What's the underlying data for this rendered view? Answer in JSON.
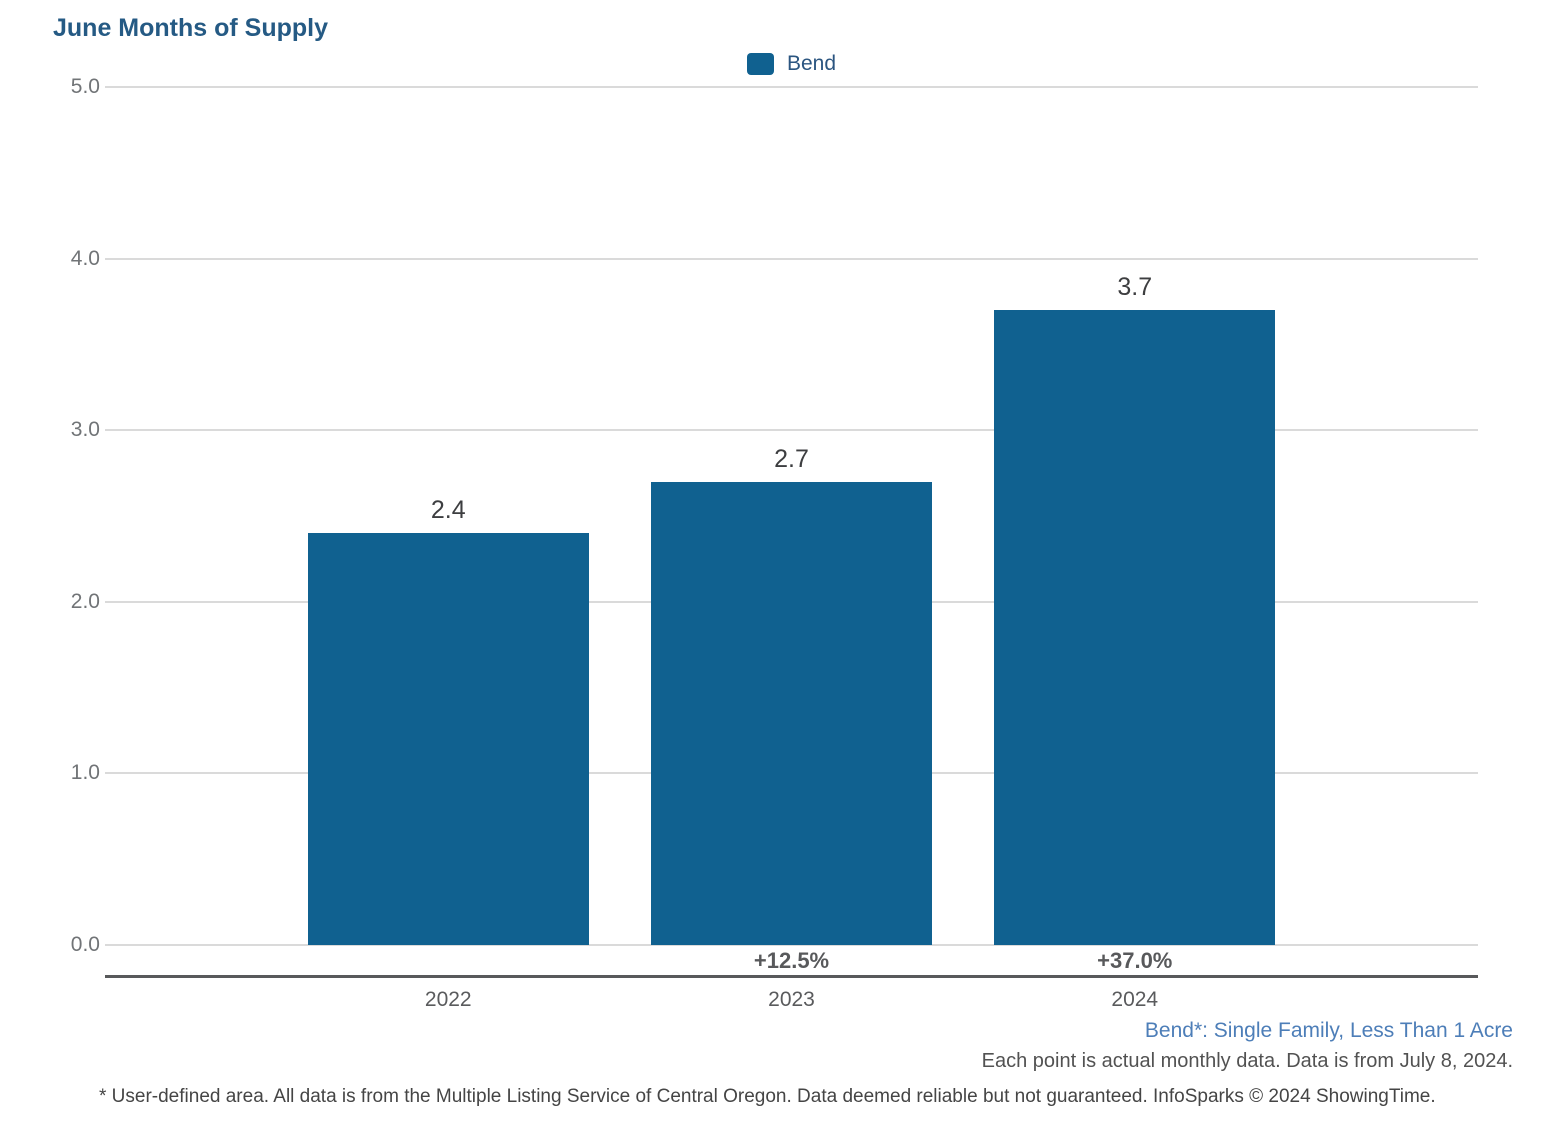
{
  "title": "June Months of Supply",
  "legend": {
    "label": "Bend",
    "swatch_color": "#106190"
  },
  "chart_data": {
    "type": "bar",
    "title": "June Months of Supply",
    "categories": [
      "2022",
      "2023",
      "2024"
    ],
    "series": [
      {
        "name": "Bend",
        "values": [
          2.4,
          2.7,
          3.7
        ]
      }
    ],
    "value_labels": [
      "2.4",
      "2.7",
      "3.7"
    ],
    "pct_change_labels": [
      "",
      "+12.5%",
      "+37.0%"
    ],
    "y_ticks": [
      "5.0",
      "4.0",
      "3.0",
      "2.0",
      "1.0",
      "0.0"
    ],
    "ylim": [
      0,
      5
    ],
    "xlabel": "",
    "ylabel": "",
    "grid": "horizontal",
    "legend_position": "top-center",
    "bar_color": "#106190"
  },
  "footer": {
    "series_note": "Bend*: Single Family, Less Than 1 Acre",
    "data_note": "Each point is actual monthly data. Data is from July 8, 2024.",
    "disclaimer": "* User-defined area. All data is from the Multiple Listing Service of Central Oregon. Data deemed reliable but not guaranteed. InfoSparks © 2024 ShowingTime."
  },
  "colors": {
    "bar": "#106190",
    "title_text": "#255a84",
    "series_note_text": "#4d7eb8",
    "gridline": "#dadada",
    "axis_line": "#58595b"
  }
}
